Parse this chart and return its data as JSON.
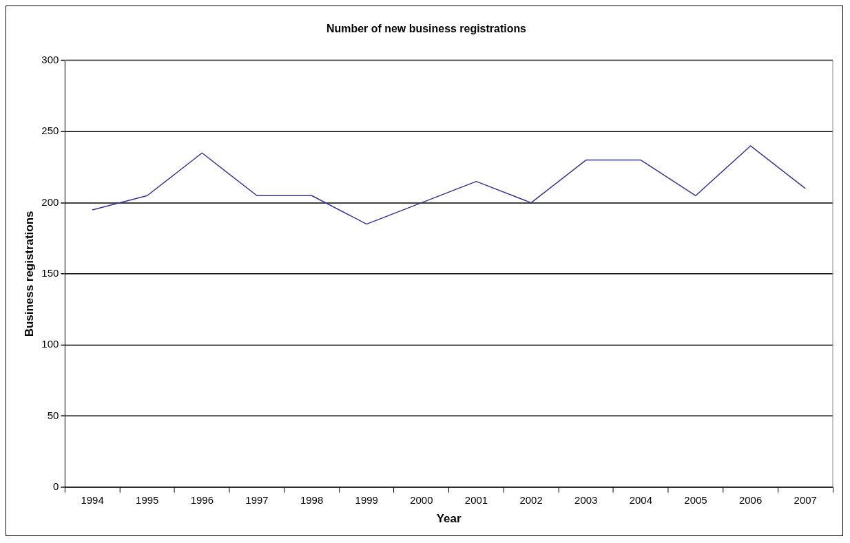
{
  "chart_data": {
    "type": "line",
    "title": "Number of new business registrations",
    "xlabel": "Year",
    "ylabel": "Business registrations",
    "categories": [
      "1994",
      "1995",
      "1996",
      "1997",
      "1998",
      "1999",
      "2000",
      "2001",
      "2002",
      "2003",
      "2004",
      "2005",
      "2006",
      "2007"
    ],
    "series": [
      {
        "color": "#333399",
        "values": [
          195,
          205,
          235,
          205,
          205,
          185,
          200,
          215,
          200,
          230,
          230,
          205,
          240,
          210
        ]
      }
    ],
    "ylim": [
      0,
      300
    ],
    "yticks": [
      0,
      50,
      100,
      150,
      200,
      250,
      300
    ],
    "grid": "y",
    "legend": false,
    "marker": "none",
    "line_style": "solid"
  }
}
